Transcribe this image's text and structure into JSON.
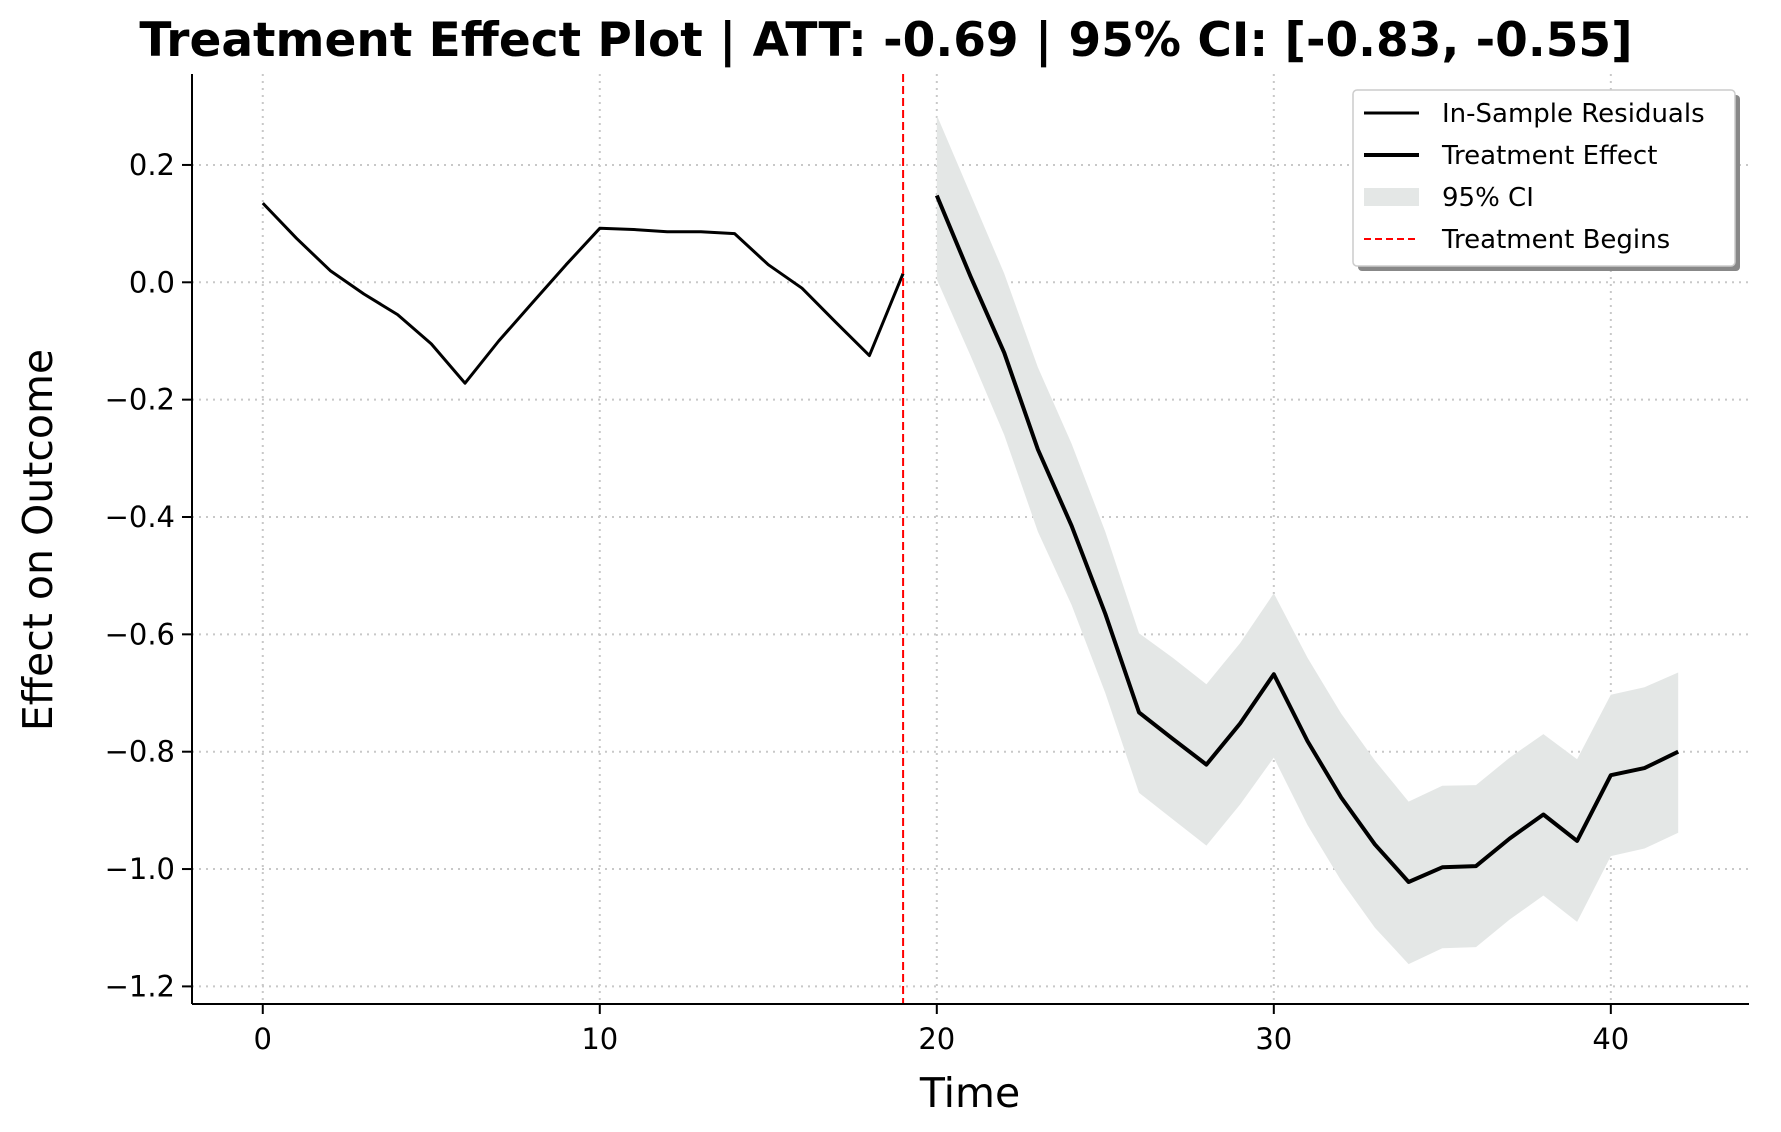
{
  "chart_data": {
    "type": "line",
    "title": "Treatment Effect Plot | ATT: -0.69 | 95% CI: [-0.83, -0.55]",
    "xlabel": "Time",
    "ylabel": "Effect on Outcome",
    "xlim": [
      -2.1,
      44.1
    ],
    "ylim": [
      -1.23,
      0.355
    ],
    "xticks": [
      0,
      10,
      20,
      30,
      40
    ],
    "xtick_labels": [
      "0",
      "10",
      "20",
      "30",
      "40"
    ],
    "yticks": [
      0.2,
      0.0,
      -0.2,
      -0.4,
      -0.6,
      -0.8,
      -1.0,
      -1.2
    ],
    "ytick_labels": [
      "0.2",
      "0.0",
      "−0.2",
      "−0.4",
      "−0.6",
      "−0.8",
      "−1.0",
      "−1.2"
    ],
    "grid": true,
    "legend_position": "top-right",
    "legend": [
      {
        "label": "In-Sample Residuals",
        "kind": "line",
        "color": "#000000"
      },
      {
        "label": "Treatment Effect",
        "kind": "thick-line",
        "color": "#000000"
      },
      {
        "label": "95% CI",
        "kind": "patch",
        "color": "#e4e7e6"
      },
      {
        "label": "Treatment Begins",
        "kind": "dashed-line",
        "color": "#ff0000"
      }
    ],
    "treatment_start": 19,
    "series": [
      {
        "name": "In-Sample Residuals",
        "color": "#000000",
        "x": [
          0,
          1,
          2,
          3,
          4,
          5,
          6,
          7,
          8,
          9,
          10,
          11,
          12,
          13,
          14,
          15,
          16,
          17,
          18,
          19
        ],
        "y": [
          0.135,
          0.075,
          0.02,
          -0.02,
          -0.055,
          -0.105,
          -0.172,
          -0.1,
          -0.035,
          0.03,
          0.092,
          0.09,
          0.086,
          0.086,
          0.083,
          0.03,
          -0.01,
          -0.068,
          -0.125,
          0.015
        ]
      },
      {
        "name": "Treatment Effect",
        "color": "#000000",
        "x": [
          20,
          21,
          22,
          23,
          24,
          25,
          26,
          27,
          28,
          29,
          30,
          31,
          32,
          33,
          34,
          35,
          36,
          37,
          38,
          39,
          40,
          41,
          42
        ],
        "y": [
          0.148,
          0.01,
          -0.12,
          -0.285,
          -0.415,
          -0.565,
          -0.733,
          -0.778,
          -0.822,
          -0.752,
          -0.668,
          -0.782,
          -0.878,
          -0.958,
          -1.022,
          -0.997,
          -0.995,
          -0.948,
          -0.907,
          -0.952,
          -0.84,
          -0.828,
          -0.8
        ]
      }
    ],
    "ci": {
      "name": "95% CI",
      "color": "#e4e7e6",
      "x": [
        20,
        21,
        22,
        23,
        24,
        25,
        26,
        27,
        28,
        29,
        30,
        31,
        32,
        33,
        34,
        35,
        36,
        37,
        38,
        39,
        40,
        41,
        42
      ],
      "lower": [
        0.005,
        -0.125,
        -0.26,
        -0.425,
        -0.55,
        -0.7,
        -0.87,
        -0.915,
        -0.96,
        -0.89,
        -0.81,
        -0.925,
        -1.02,
        -1.1,
        -1.162,
        -1.135,
        -1.133,
        -1.086,
        -1.045,
        -1.09,
        -0.978,
        -0.965,
        -0.938
      ],
      "upper": [
        0.285,
        0.15,
        0.015,
        -0.145,
        -0.275,
        -0.425,
        -0.598,
        -0.64,
        -0.685,
        -0.615,
        -0.53,
        -0.64,
        -0.735,
        -0.815,
        -0.885,
        -0.858,
        -0.857,
        -0.81,
        -0.77,
        -0.813,
        -0.703,
        -0.69,
        -0.665
      ]
    }
  }
}
